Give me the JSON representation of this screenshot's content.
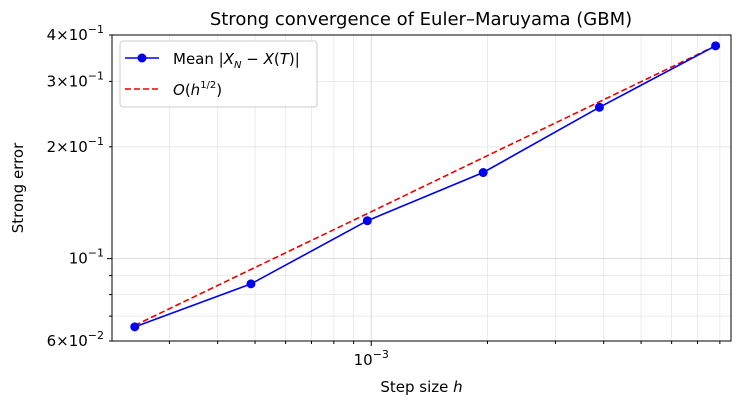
{
  "chart_data": {
    "type": "line",
    "title": "Strong convergence of Euler–Maruyama (GBM)",
    "xlabel": "Step size h",
    "ylabel": "Strong error",
    "xscale": "log",
    "yscale": "log",
    "xlim": [
      0.000213,
      0.00855
    ],
    "ylim": [
      0.06,
      0.4
    ],
    "grid": true,
    "legend_position": "upper left",
    "x_ticks": [
      {
        "value": 0.001,
        "base": "10",
        "exp": "−3"
      }
    ],
    "y_ticks": [
      {
        "value": 0.06,
        "mant": "6",
        "exp": "−2"
      },
      {
        "value": 0.1,
        "mant": "",
        "exp": "−1"
      },
      {
        "value": 0.2,
        "mant": "2",
        "exp": "−1"
      },
      {
        "value": 0.3,
        "mant": "3",
        "exp": "−1"
      },
      {
        "value": 0.4,
        "mant": "4",
        "exp": "−1"
      }
    ],
    "x": [
      0.000244,
      0.000488,
      0.000977,
      0.00195,
      0.0039,
      0.0078
    ],
    "series": [
      {
        "name": "Mean |X_N − X(T)|",
        "color": "#0000ee",
        "style": "solid",
        "marker": "circle",
        "values": [
          0.0655,
          0.0855,
          0.1265,
          0.1705,
          0.2555,
          0.374
        ]
      },
      {
        "name": "O(h^1/2)",
        "color": "#ee0000",
        "style": "dashed",
        "marker": "none",
        "values": [
          0.0661,
          0.0935,
          0.1322,
          0.1869,
          0.2644,
          0.374
        ]
      }
    ]
  }
}
